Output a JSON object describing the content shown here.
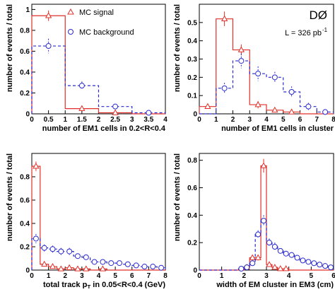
{
  "figure": {
    "experiment_logo": "DØ",
    "luminosity_label": "L = 326 pb",
    "luminosity_exponent": "-1",
    "legend": [
      {
        "label": "MC signal",
        "marker": "triangle",
        "color": "#e0302a",
        "line": "solid"
      },
      {
        "label": "MC background",
        "marker": "circle",
        "color": "#2a2ad0",
        "line": "dashed"
      }
    ]
  },
  "chart_data": [
    {
      "type": "bar",
      "panel": "top-left",
      "xlabel": "number of EM1 cells in 0.2<R<0.4",
      "ylabel": "number of events / total",
      "xlim": [
        0,
        4
      ],
      "ylim": [
        0,
        1.05
      ],
      "xticks": [
        0,
        0.5,
        1,
        1.5,
        2,
        2.5,
        3,
        3.5,
        4
      ],
      "yticks": [
        0,
        0.2,
        0.4,
        0.6,
        0.8,
        1
      ],
      "bin_edges": [
        0,
        1,
        2,
        3,
        4
      ],
      "series": [
        {
          "name": "MC signal",
          "values": [
            0.94,
            0.05,
            0.01,
            0.0
          ],
          "errors": [
            0.05,
            0.02,
            0.01,
            0.0
          ]
        },
        {
          "name": "MC background",
          "values": [
            0.65,
            0.27,
            0.07,
            0.01
          ],
          "errors": [
            0.07,
            0.04,
            0.02,
            0.01
          ]
        }
      ]
    },
    {
      "type": "bar",
      "panel": "top-right",
      "xlabel": "number of EM1 cells in cluster",
      "ylabel": "number of events / total",
      "xlim": [
        0,
        8
      ],
      "ylim": [
        0,
        0.6
      ],
      "xticks": [
        0,
        1,
        2,
        3,
        4,
        5,
        6,
        7,
        8
      ],
      "yticks": [
        0,
        0.1,
        0.2,
        0.3,
        0.4,
        0.5
      ],
      "bin_edges": [
        0,
        1,
        2,
        3,
        4,
        5,
        6,
        7,
        8
      ],
      "series": [
        {
          "name": "MC signal",
          "values": [
            0.04,
            0.52,
            0.35,
            0.05,
            0.02,
            0.01,
            0.0,
            0.0
          ],
          "errors": [
            0.01,
            0.04,
            0.03,
            0.02,
            0.01,
            0.01,
            0.0,
            0.0
          ]
        },
        {
          "name": "MC background",
          "values": [
            0.0,
            0.14,
            0.29,
            0.22,
            0.2,
            0.12,
            0.04,
            0.01
          ],
          "errors": [
            0.0,
            0.03,
            0.04,
            0.04,
            0.03,
            0.03,
            0.02,
            0.01
          ]
        }
      ]
    },
    {
      "type": "bar",
      "panel": "bottom-left",
      "xlabel_prefix": "total track p",
      "xlabel_sub": "T",
      "xlabel_suffix": " in 0.05<R<0.4 (GeV)",
      "ylabel": "number of events / total",
      "xlim": [
        0,
        8
      ],
      "ylim": [
        0,
        1.0
      ],
      "xticks": [
        0,
        1,
        2,
        3,
        4,
        5,
        6,
        7,
        8
      ],
      "yticks": [
        0,
        0.2,
        0.4,
        0.6,
        0.8
      ],
      "bin_edges": [
        0,
        0.5,
        1,
        1.5,
        2,
        2.5,
        3,
        3.5,
        4,
        4.5,
        5,
        5.5,
        6,
        6.5,
        7,
        7.5,
        8
      ],
      "series": [
        {
          "name": "MC signal",
          "values": [
            0.89,
            0.05,
            0.03,
            0.01,
            0.02,
            0.01,
            0.01,
            0.0,
            0.01,
            0.0,
            0.0,
            0.0,
            0.0,
            0.0,
            0.0,
            0.0
          ],
          "errors": [
            0.04,
            0.02,
            0.01,
            0.01,
            0.01,
            0.01,
            0.01,
            0.0,
            0.01,
            0.0,
            0.0,
            0.0,
            0.0,
            0.0,
            0.0,
            0.0
          ]
        },
        {
          "name": "MC background",
          "values": [
            0.27,
            0.19,
            0.18,
            0.16,
            0.16,
            0.12,
            0.11,
            0.07,
            0.07,
            0.06,
            0.06,
            0.05,
            0.04,
            0.03,
            0.03,
            0.02
          ],
          "errors": [
            0.04,
            0.03,
            0.03,
            0.03,
            0.03,
            0.02,
            0.02,
            0.02,
            0.02,
            0.02,
            0.02,
            0.01,
            0.01,
            0.01,
            0.01,
            0.01
          ]
        }
      ]
    },
    {
      "type": "bar",
      "panel": "bottom-right",
      "xlabel": "width of EM cluster in EM3 (cm)",
      "ylabel": "number of events / total",
      "xlim": [
        0,
        6
      ],
      "ylim": [
        0,
        0.85
      ],
      "xticks": [
        0,
        1,
        2,
        3,
        4,
        5,
        6
      ],
      "yticks": [
        0,
        0.2,
        0.4,
        0.6,
        0.8
      ],
      "bin_edges": [
        0,
        0.25,
        0.5,
        0.75,
        1,
        1.25,
        1.5,
        1.75,
        2,
        2.25,
        2.5,
        2.75,
        3,
        3.25,
        3.5,
        3.75,
        4,
        4.25,
        4.5,
        4.75,
        5,
        5.25,
        5.5,
        5.75,
        6
      ],
      "series": [
        {
          "name": "MC signal",
          "values": [
            0,
            0,
            0,
            0,
            0,
            0,
            0,
            0,
            0.02,
            0.09,
            0.09,
            0.76,
            0.04,
            0.02,
            0.01,
            0.01,
            0,
            0,
            0,
            0,
            0,
            0,
            0,
            0
          ],
          "errors": [
            0,
            0,
            0,
            0,
            0,
            0,
            0,
            0,
            0.01,
            0.02,
            0.02,
            0.05,
            0.01,
            0.01,
            0.01,
            0.01,
            0,
            0,
            0,
            0,
            0,
            0,
            0,
            0
          ]
        },
        {
          "name": "MC background",
          "values": [
            0,
            0,
            0,
            0,
            0,
            0,
            0,
            0.01,
            0.02,
            0.05,
            0.26,
            0.36,
            0.2,
            0.17,
            0.14,
            0.12,
            0.11,
            0.09,
            0.07,
            0.06,
            0.05,
            0.04,
            0.03,
            0.02
          ],
          "errors": [
            0,
            0,
            0,
            0,
            0,
            0,
            0,
            0.01,
            0.01,
            0.02,
            0.03,
            0.04,
            0.03,
            0.03,
            0.02,
            0.02,
            0.02,
            0.02,
            0.02,
            0.02,
            0.01,
            0.01,
            0.01,
            0.01
          ]
        }
      ]
    }
  ]
}
